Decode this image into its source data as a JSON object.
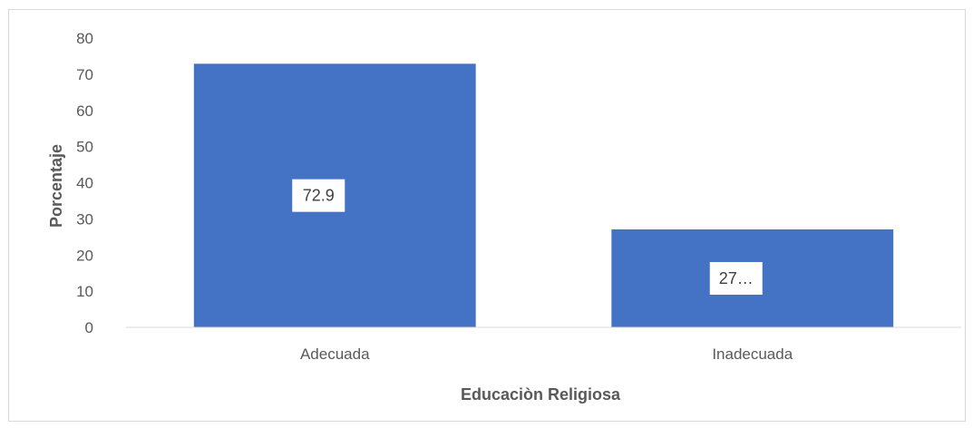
{
  "chart_data": {
    "type": "bar",
    "categories": [
      "Adecuada",
      "Inadecuada"
    ],
    "values": [
      72.9,
      27.1
    ],
    "data_labels": [
      "72.9",
      "27…"
    ],
    "xlabel": "Educaciòn Religiosa",
    "ylabel": "Porcentaje",
    "ylim": [
      0,
      80
    ],
    "yticks": [
      0,
      10,
      20,
      30,
      40,
      50,
      60,
      70,
      80
    ],
    "grid": false,
    "legend": "none",
    "bar_color": "#4472C4"
  }
}
